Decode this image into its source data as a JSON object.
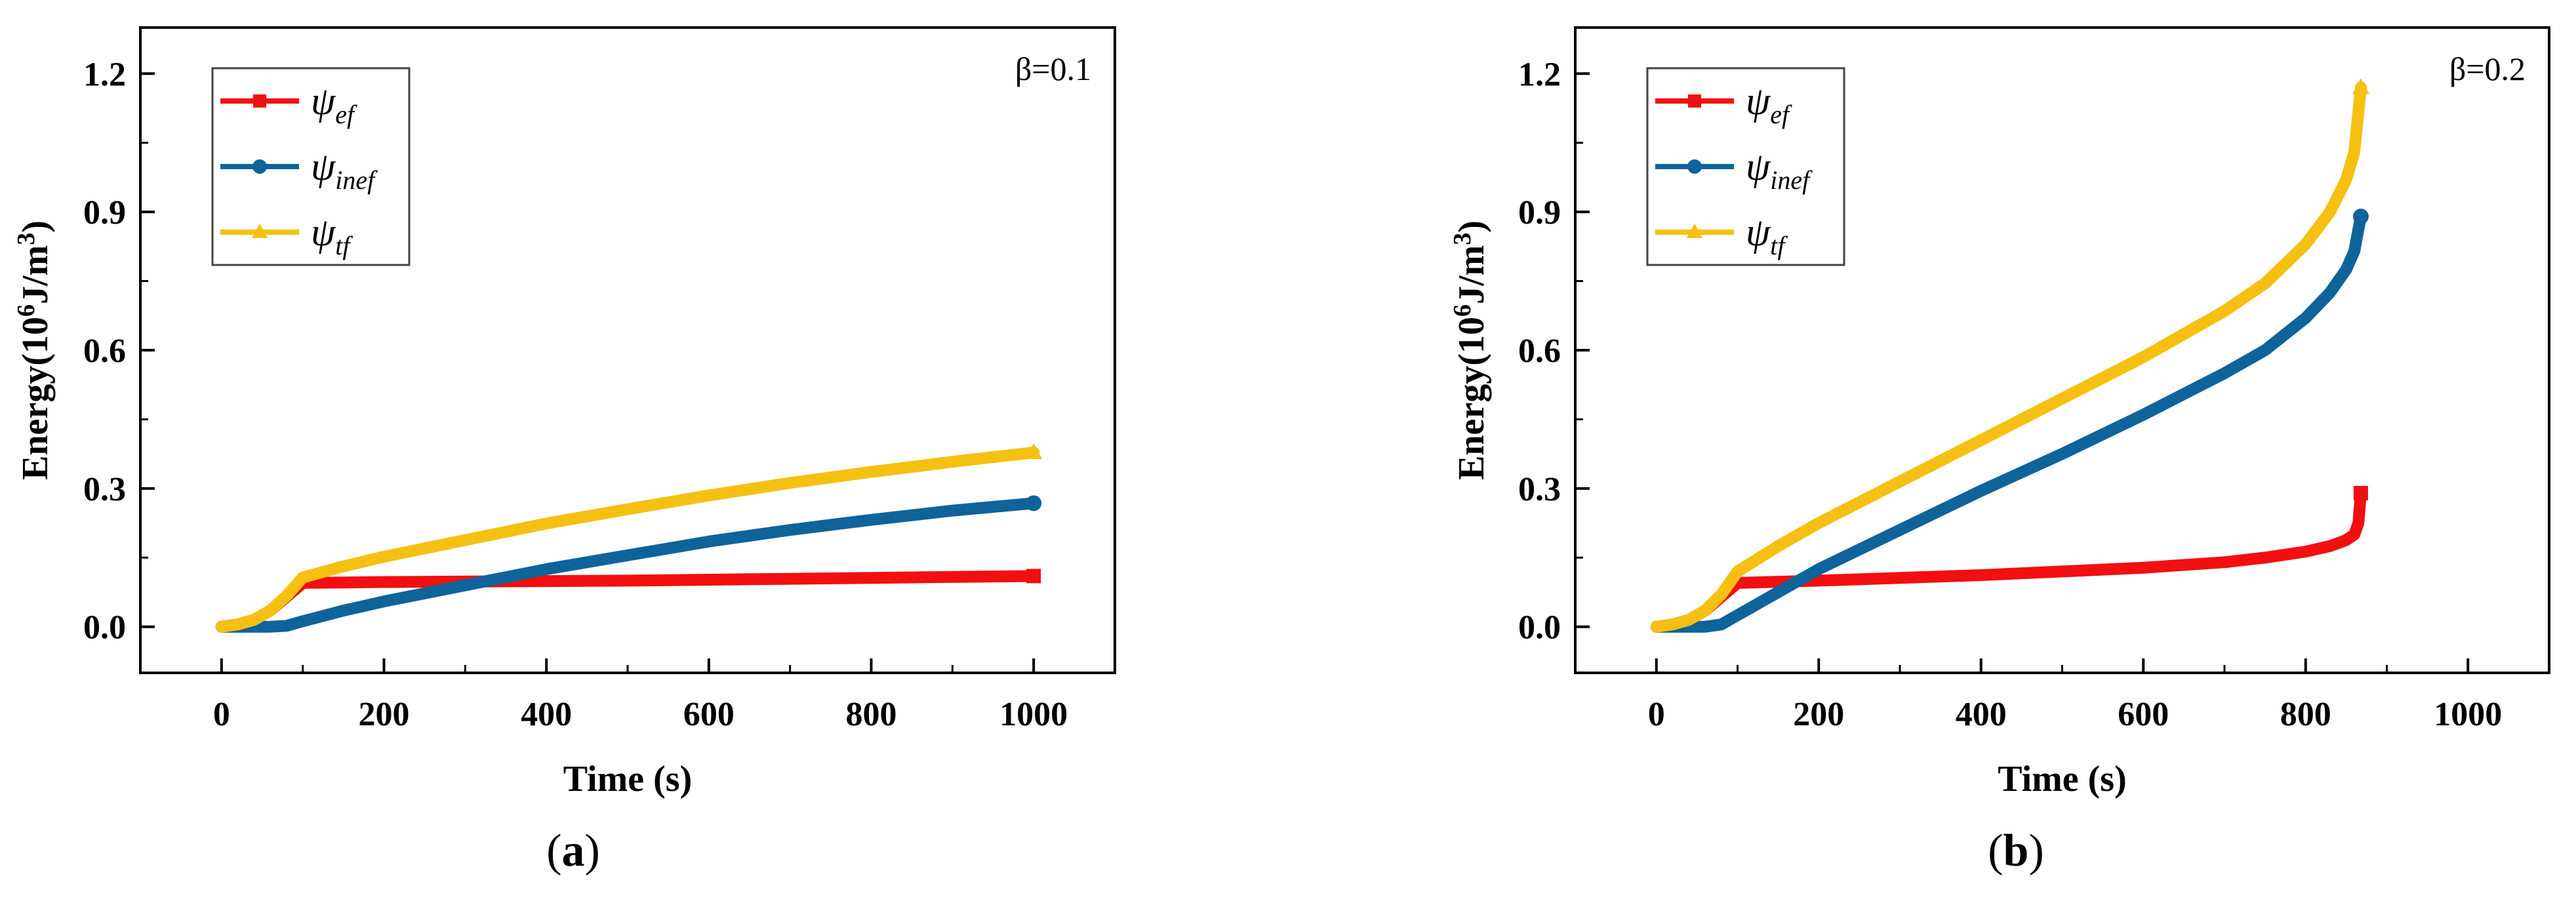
{
  "colors": {
    "ef": "#f20f0f",
    "inef": "#0f639b",
    "tf": "#f6c013",
    "axis": "#000000"
  },
  "chart_data": [
    {
      "type": "line",
      "panel": "a",
      "caption_label": "a",
      "annotation": "β=0.1",
      "xlabel": "Time (s)",
      "ylabel": "Energy(10^6J/m^3)",
      "xlim": [
        -100,
        1100
      ],
      "ylim": [
        -0.1,
        1.3
      ],
      "xticks": [
        0,
        200,
        400,
        600,
        800,
        1000
      ],
      "xtick_labels": [
        "0",
        "200",
        "400",
        "600",
        "800",
        "1000"
      ],
      "yticks": [
        0.0,
        0.3,
        0.6,
        0.9,
        1.2
      ],
      "ytick_labels": [
        "0.0",
        "0.3",
        "0.6",
        "0.9",
        "1.2"
      ],
      "legend_position": "top-left",
      "series": [
        {
          "key": "ef",
          "symbol": "ψ",
          "sub": "ef",
          "marker": "square",
          "x": [
            0,
            20,
            40,
            60,
            80,
            100,
            150,
            200,
            300,
            400,
            500,
            600,
            700,
            800,
            900,
            1000
          ],
          "y": [
            0,
            0.005,
            0.015,
            0.035,
            0.065,
            0.095,
            0.096,
            0.097,
            0.098,
            0.099,
            0.1,
            0.102,
            0.104,
            0.106,
            0.108,
            0.11
          ]
        },
        {
          "key": "inef",
          "symbol": "ψ",
          "sub": "inef",
          "marker": "circle",
          "x": [
            0,
            20,
            40,
            60,
            80,
            100,
            150,
            200,
            300,
            400,
            500,
            600,
            700,
            800,
            900,
            1000
          ],
          "y": [
            0,
            0,
            0,
            0,
            0.002,
            0.012,
            0.035,
            0.055,
            0.09,
            0.125,
            0.155,
            0.185,
            0.21,
            0.232,
            0.252,
            0.268
          ]
        },
        {
          "key": "tf",
          "symbol": "ψ",
          "sub": "tf",
          "marker": "triangle",
          "x": [
            0,
            20,
            40,
            60,
            80,
            100,
            150,
            200,
            300,
            400,
            500,
            600,
            700,
            800,
            900,
            1000
          ],
          "y": [
            0,
            0.005,
            0.015,
            0.035,
            0.067,
            0.107,
            0.131,
            0.152,
            0.188,
            0.224,
            0.255,
            0.285,
            0.312,
            0.336,
            0.358,
            0.378
          ]
        }
      ]
    },
    {
      "type": "line",
      "panel": "b",
      "caption_label": "b",
      "annotation": "β=0.2",
      "xlabel": "Time (s)",
      "ylabel": "Energy(10^6J/m^3)",
      "xlim": [
        -100,
        1100
      ],
      "ylim": [
        -0.1,
        1.3
      ],
      "xticks": [
        0,
        200,
        400,
        600,
        800,
        1000
      ],
      "xtick_labels": [
        "0",
        "200",
        "400",
        "600",
        "800",
        "1000"
      ],
      "yticks": [
        0.0,
        0.3,
        0.6,
        0.9,
        1.2
      ],
      "ytick_labels": [
        "0.0",
        "0.3",
        "0.6",
        "0.9",
        "1.2"
      ],
      "legend_position": "top-left",
      "series": [
        {
          "key": "ef",
          "symbol": "ψ",
          "sub": "ef",
          "marker": "square",
          "x": [
            0,
            20,
            40,
            60,
            80,
            100,
            200,
            300,
            400,
            500,
            600,
            700,
            750,
            800,
            830,
            850,
            860,
            865,
            868
          ],
          "y": [
            0,
            0.005,
            0.015,
            0.035,
            0.065,
            0.095,
            0.1,
            0.106,
            0.112,
            0.12,
            0.128,
            0.14,
            0.15,
            0.163,
            0.175,
            0.188,
            0.2,
            0.225,
            0.29
          ]
        },
        {
          "key": "inef",
          "symbol": "ψ",
          "sub": "inef",
          "marker": "circle",
          "x": [
            0,
            20,
            40,
            60,
            80,
            100,
            150,
            200,
            300,
            400,
            500,
            600,
            700,
            750,
            800,
            830,
            850,
            860,
            868
          ],
          "y": [
            0,
            0,
            0,
            0,
            0.005,
            0.025,
            0.075,
            0.125,
            0.21,
            0.295,
            0.375,
            0.46,
            0.55,
            0.6,
            0.67,
            0.725,
            0.775,
            0.815,
            0.89
          ]
        },
        {
          "key": "tf",
          "symbol": "ψ",
          "sub": "tf",
          "marker": "triangle",
          "x": [
            0,
            20,
            40,
            60,
            80,
            100,
            150,
            200,
            300,
            400,
            500,
            600,
            700,
            750,
            800,
            830,
            850,
            860,
            868
          ],
          "y": [
            0,
            0.005,
            0.015,
            0.035,
            0.07,
            0.12,
            0.175,
            0.225,
            0.315,
            0.405,
            0.495,
            0.585,
            0.685,
            0.745,
            0.83,
            0.9,
            0.97,
            1.03,
            1.17
          ]
        }
      ]
    }
  ]
}
